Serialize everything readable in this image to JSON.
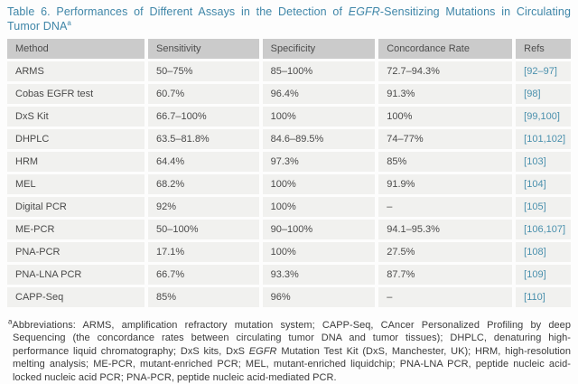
{
  "colors": {
    "title_blue": "#3f86a8",
    "ref_link_teal": "#4a90ad",
    "header_bg": "#cbcbcb",
    "row_bg": "#f1f1ef"
  },
  "title": {
    "line1_pre_italic": "Table 6. Performances of Different Assays in the Detection of ",
    "line1_italic": "EGFR",
    "line1_post_italic": "-Sensitizing Mutations in Circulating",
    "line2_text": "Tumor DNA",
    "line2_superscript": "a"
  },
  "table": {
    "columns": [
      "Method",
      "Sensitivity",
      "Specificity",
      "Concordance Rate",
      "Refs"
    ],
    "rows": [
      {
        "method": "ARMS",
        "sensitivity": "50–75%",
        "specificity": "85–100%",
        "concordance": "72.7–94.3%",
        "refs": "[92–97]"
      },
      {
        "method": "Cobas EGFR test",
        "sensitivity": "60.7%",
        "specificity": "96.4%",
        "concordance": "91.3%",
        "refs": "[98]"
      },
      {
        "method": "DxS Kit",
        "sensitivity": "66.7–100%",
        "specificity": "100%",
        "concordance": "100%",
        "refs": "[99,100]"
      },
      {
        "method": "DHPLC",
        "sensitivity": "63.5–81.8%",
        "specificity": "84.6–89.5%",
        "concordance": "74–77%",
        "refs": "[101,102]"
      },
      {
        "method": "HRM",
        "sensitivity": "64.4%",
        "specificity": "97.3%",
        "concordance": "85%",
        "refs": "[103]"
      },
      {
        "method": "MEL",
        "sensitivity": "68.2%",
        "specificity": "100%",
        "concordance": "91.9%",
        "refs": "[104]"
      },
      {
        "method": "Digital PCR",
        "sensitivity": "92%",
        "specificity": "100%",
        "concordance": "–",
        "refs": "[105]"
      },
      {
        "method": "ME-PCR",
        "sensitivity": "50–100%",
        "specificity": "90–100%",
        "concordance": "94.1–95.3%",
        "refs": "[106,107]"
      },
      {
        "method": "PNA-PCR",
        "sensitivity": "17.1%",
        "specificity": "100%",
        "concordance": "27.5%",
        "refs": "[108]"
      },
      {
        "method": "PNA-LNA PCR",
        "sensitivity": "66.7%",
        "specificity": "93.3%",
        "concordance": "87.7%",
        "refs": "[109]"
      },
      {
        "method": "CAPP-Seq",
        "sensitivity": "85%",
        "specificity": "96%",
        "concordance": "–",
        "refs": "[110]"
      }
    ]
  },
  "footnote": {
    "superscript": "a",
    "line1": "Abbreviations: ARMS, amplification refractory mutation system; CAPP-Seq, CAncer Personalized Profiling by deep",
    "line2": "Sequencing (the concordance rates between circulating tumor DNA and tumor tissues); DHPLC, denaturing high-",
    "line3_pre_italic": "performance liquid chromatography; DxS kits, DxS ",
    "line3_italic": "EGFR",
    "line3_post_italic": " Mutation Test Kit (DxS, Manchester, UK); HRM, high-resolution",
    "line4": "melting analysis; ME-PCR, mutant-enriched PCR; MEL, mutant-enriched liquidchip; PNA-LNA PCR, peptide nucleic acid-",
    "line5": "locked nucleic acid PCR; PNA-PCR, peptide nucleic acid-mediated PCR."
  }
}
